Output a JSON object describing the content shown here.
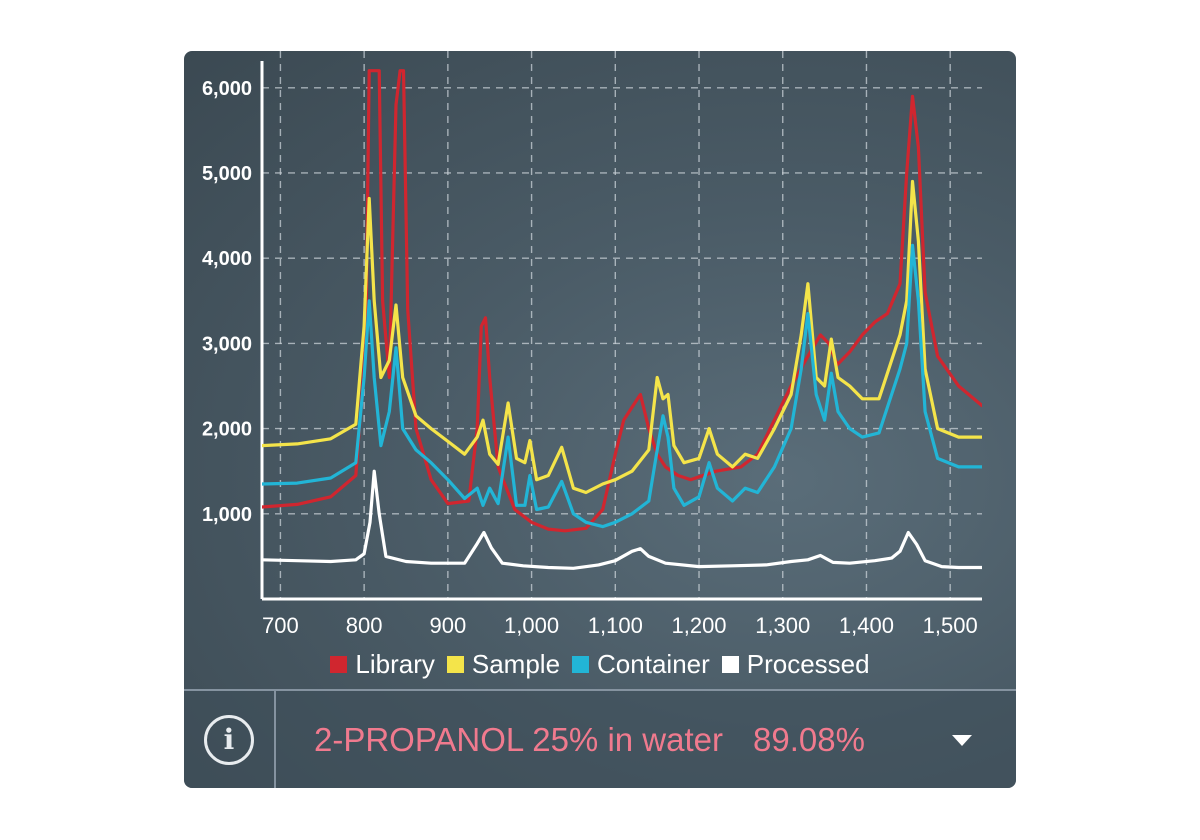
{
  "chart_data": {
    "type": "line",
    "title": "",
    "xlabel": "",
    "ylabel": "",
    "xlim": [
      678,
      1538
    ],
    "ylim": [
      0,
      6150
    ],
    "grid": true,
    "legend_position": "bottom",
    "x_ticks": [
      700,
      800,
      900,
      1000,
      1100,
      1200,
      1300,
      1400,
      1500
    ],
    "x_tick_labels": [
      "700",
      "800",
      "900",
      "1,000",
      "1,100",
      "1,200",
      "1,300",
      "1,400",
      "1,500"
    ],
    "y_ticks": [
      1000,
      2000,
      3000,
      4000,
      5000,
      6000
    ],
    "y_tick_labels": [
      "1,000",
      "2,000",
      "3,000",
      "4,000",
      "5,000",
      "6,000"
    ],
    "series": [
      {
        "name": "Library",
        "color": "#d0262f",
        "points": [
          [
            678,
            1080
          ],
          [
            720,
            1110
          ],
          [
            760,
            1200
          ],
          [
            790,
            1450
          ],
          [
            802,
            3000
          ],
          [
            806,
            6200
          ],
          [
            818,
            6200
          ],
          [
            822,
            3500
          ],
          [
            830,
            2600
          ],
          [
            838,
            5800
          ],
          [
            843,
            6200
          ],
          [
            847,
            6200
          ],
          [
            852,
            3400
          ],
          [
            862,
            2000
          ],
          [
            880,
            1400
          ],
          [
            900,
            1120
          ],
          [
            925,
            1150
          ],
          [
            935,
            2000
          ],
          [
            940,
            3200
          ],
          [
            945,
            3300
          ],
          [
            950,
            2600
          ],
          [
            960,
            1550
          ],
          [
            980,
            1050
          ],
          [
            1000,
            900
          ],
          [
            1020,
            820
          ],
          [
            1040,
            800
          ],
          [
            1065,
            830
          ],
          [
            1085,
            1050
          ],
          [
            1100,
            1700
          ],
          [
            1110,
            2100
          ],
          [
            1120,
            2250
          ],
          [
            1130,
            2400
          ],
          [
            1140,
            2000
          ],
          [
            1150,
            1700
          ],
          [
            1160,
            1550
          ],
          [
            1175,
            1450
          ],
          [
            1190,
            1400
          ],
          [
            1220,
            1500
          ],
          [
            1250,
            1550
          ],
          [
            1270,
            1700
          ],
          [
            1290,
            2100
          ],
          [
            1310,
            2500
          ],
          [
            1330,
            2850
          ],
          [
            1345,
            3100
          ],
          [
            1355,
            3000
          ],
          [
            1365,
            2750
          ],
          [
            1380,
            2900
          ],
          [
            1395,
            3100
          ],
          [
            1410,
            3250
          ],
          [
            1425,
            3350
          ],
          [
            1440,
            3700
          ],
          [
            1448,
            5000
          ],
          [
            1455,
            5900
          ],
          [
            1462,
            5300
          ],
          [
            1470,
            3600
          ],
          [
            1485,
            2850
          ],
          [
            1510,
            2500
          ],
          [
            1538,
            2270
          ]
        ]
      },
      {
        "name": "Sample",
        "color": "#f4e44a",
        "points": [
          [
            678,
            1800
          ],
          [
            720,
            1820
          ],
          [
            760,
            1880
          ],
          [
            790,
            2050
          ],
          [
            800,
            3200
          ],
          [
            806,
            4700
          ],
          [
            812,
            3500
          ],
          [
            820,
            2600
          ],
          [
            830,
            2800
          ],
          [
            838,
            3450
          ],
          [
            846,
            2600
          ],
          [
            862,
            2150
          ],
          [
            880,
            2000
          ],
          [
            900,
            1850
          ],
          [
            920,
            1700
          ],
          [
            935,
            1900
          ],
          [
            942,
            2100
          ],
          [
            950,
            1700
          ],
          [
            960,
            1580
          ],
          [
            972,
            2300
          ],
          [
            982,
            1650
          ],
          [
            992,
            1600
          ],
          [
            998,
            1860
          ],
          [
            1006,
            1400
          ],
          [
            1020,
            1450
          ],
          [
            1036,
            1780
          ],
          [
            1050,
            1300
          ],
          [
            1065,
            1250
          ],
          [
            1085,
            1350
          ],
          [
            1100,
            1400
          ],
          [
            1120,
            1500
          ],
          [
            1140,
            1750
          ],
          [
            1150,
            2600
          ],
          [
            1157,
            2350
          ],
          [
            1163,
            2400
          ],
          [
            1170,
            1800
          ],
          [
            1182,
            1600
          ],
          [
            1200,
            1650
          ],
          [
            1212,
            2000
          ],
          [
            1222,
            1700
          ],
          [
            1240,
            1550
          ],
          [
            1255,
            1700
          ],
          [
            1270,
            1650
          ],
          [
            1290,
            2000
          ],
          [
            1310,
            2400
          ],
          [
            1322,
            3100
          ],
          [
            1330,
            3700
          ],
          [
            1340,
            2600
          ],
          [
            1350,
            2500
          ],
          [
            1358,
            3050
          ],
          [
            1366,
            2600
          ],
          [
            1380,
            2500
          ],
          [
            1395,
            2350
          ],
          [
            1415,
            2350
          ],
          [
            1430,
            2800
          ],
          [
            1440,
            3100
          ],
          [
            1448,
            3500
          ],
          [
            1455,
            4900
          ],
          [
            1462,
            4200
          ],
          [
            1470,
            2700
          ],
          [
            1485,
            2000
          ],
          [
            1510,
            1900
          ],
          [
            1538,
            1900
          ]
        ]
      },
      {
        "name": "Container",
        "color": "#22b5d6",
        "points": [
          [
            678,
            1350
          ],
          [
            720,
            1360
          ],
          [
            760,
            1420
          ],
          [
            790,
            1600
          ],
          [
            800,
            2600
          ],
          [
            806,
            3500
          ],
          [
            812,
            2600
          ],
          [
            820,
            1800
          ],
          [
            830,
            2200
          ],
          [
            838,
            2950
          ],
          [
            846,
            2000
          ],
          [
            862,
            1750
          ],
          [
            880,
            1600
          ],
          [
            900,
            1400
          ],
          [
            920,
            1180
          ],
          [
            935,
            1300
          ],
          [
            942,
            1100
          ],
          [
            950,
            1300
          ],
          [
            960,
            1120
          ],
          [
            972,
            1900
          ],
          [
            982,
            1100
          ],
          [
            992,
            1100
          ],
          [
            998,
            1450
          ],
          [
            1006,
            1050
          ],
          [
            1020,
            1080
          ],
          [
            1036,
            1380
          ],
          [
            1050,
            1000
          ],
          [
            1065,
            900
          ],
          [
            1085,
            850
          ],
          [
            1100,
            900
          ],
          [
            1120,
            1000
          ],
          [
            1140,
            1150
          ],
          [
            1150,
            1750
          ],
          [
            1157,
            2150
          ],
          [
            1163,
            1900
          ],
          [
            1170,
            1300
          ],
          [
            1182,
            1100
          ],
          [
            1200,
            1200
          ],
          [
            1212,
            1600
          ],
          [
            1222,
            1300
          ],
          [
            1240,
            1150
          ],
          [
            1255,
            1300
          ],
          [
            1270,
            1250
          ],
          [
            1290,
            1550
          ],
          [
            1310,
            2000
          ],
          [
            1322,
            2700
          ],
          [
            1330,
            3350
          ],
          [
            1340,
            2400
          ],
          [
            1350,
            2100
          ],
          [
            1358,
            2650
          ],
          [
            1366,
            2200
          ],
          [
            1380,
            2000
          ],
          [
            1395,
            1900
          ],
          [
            1415,
            1950
          ],
          [
            1430,
            2400
          ],
          [
            1440,
            2700
          ],
          [
            1448,
            3000
          ],
          [
            1455,
            4150
          ],
          [
            1462,
            3500
          ],
          [
            1470,
            2200
          ],
          [
            1485,
            1650
          ],
          [
            1510,
            1550
          ],
          [
            1538,
            1550
          ]
        ]
      },
      {
        "name": "Processed",
        "color": "#ffffff",
        "points": [
          [
            678,
            460
          ],
          [
            720,
            450
          ],
          [
            760,
            440
          ],
          [
            790,
            460
          ],
          [
            800,
            530
          ],
          [
            807,
            900
          ],
          [
            812,
            1500
          ],
          [
            818,
            1000
          ],
          [
            826,
            500
          ],
          [
            850,
            440
          ],
          [
            880,
            420
          ],
          [
            920,
            420
          ],
          [
            935,
            650
          ],
          [
            943,
            780
          ],
          [
            952,
            600
          ],
          [
            965,
            420
          ],
          [
            990,
            390
          ],
          [
            1020,
            370
          ],
          [
            1050,
            360
          ],
          [
            1080,
            400
          ],
          [
            1100,
            450
          ],
          [
            1120,
            560
          ],
          [
            1130,
            590
          ],
          [
            1140,
            500
          ],
          [
            1160,
            420
          ],
          [
            1200,
            380
          ],
          [
            1240,
            390
          ],
          [
            1280,
            400
          ],
          [
            1310,
            440
          ],
          [
            1330,
            460
          ],
          [
            1345,
            510
          ],
          [
            1360,
            430
          ],
          [
            1380,
            420
          ],
          [
            1410,
            450
          ],
          [
            1430,
            480
          ],
          [
            1440,
            560
          ],
          [
            1450,
            780
          ],
          [
            1460,
            640
          ],
          [
            1470,
            450
          ],
          [
            1490,
            380
          ],
          [
            1510,
            370
          ],
          [
            1538,
            370
          ]
        ]
      }
    ]
  },
  "result": {
    "name": "2-PROPANOL 25% in water",
    "score": "89.08%",
    "name_color": "#f07a8e"
  },
  "icons": {
    "info": "info-icon",
    "info_glyph": "i",
    "dropdown": "chevron-down-icon"
  }
}
